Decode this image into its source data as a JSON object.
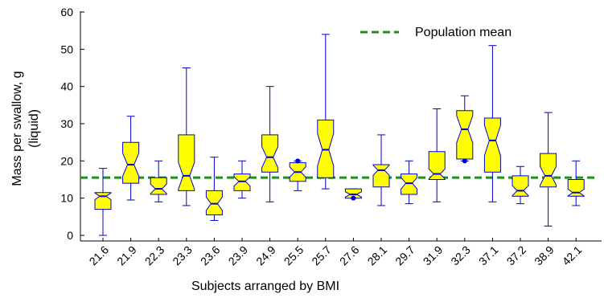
{
  "chart_data": {
    "type": "boxplot",
    "xlabel": "Subjects arranged by BMI",
    "ylabel_line1": "Mass per swallow, g",
    "ylabel_line2": "(liquid)",
    "ylim": [
      0,
      60
    ],
    "yticks": [
      "0",
      "10",
      "20",
      "30",
      "40",
      "50",
      "60"
    ],
    "categories": [
      "21.6",
      "21.9",
      "22.3",
      "23.3",
      "23.6",
      "23.9",
      "24.9",
      "25.5",
      "25.7",
      "27.6",
      "28.1",
      "29.7",
      "31.9",
      "32.3",
      "37.1",
      "37.2",
      "38.9",
      "42.1"
    ],
    "boxes": [
      {
        "min": 0,
        "q1": 7,
        "median": 10.5,
        "q3": 11.5,
        "max": 18,
        "outliers": []
      },
      {
        "min": 9.5,
        "q1": 14,
        "median": 19,
        "q3": 25,
        "max": 32,
        "outliers": []
      },
      {
        "min": 9,
        "q1": 11,
        "median": 12.5,
        "q3": 15.5,
        "max": 20,
        "outliers": []
      },
      {
        "min": 8,
        "q1": 12,
        "median": 16,
        "q3": 27,
        "max": 45,
        "outliers": []
      },
      {
        "min": 4,
        "q1": 5.5,
        "median": 8.5,
        "q3": 12,
        "max": 21,
        "outliers": []
      },
      {
        "min": 10,
        "q1": 12,
        "median": 14.5,
        "q3": 16.5,
        "max": 20,
        "outliers": []
      },
      {
        "min": 9,
        "q1": 17,
        "median": 21,
        "q3": 27,
        "max": 40,
        "outliers": []
      },
      {
        "min": 12,
        "q1": 14.5,
        "median": 17,
        "q3": 19.5,
        "max": 20,
        "outliers": [
          20
        ]
      },
      {
        "min": 12.5,
        "q1": 15.5,
        "median": 23,
        "q3": 31,
        "max": 54,
        "outliers": []
      },
      {
        "min": 10,
        "q1": 10,
        "median": 11,
        "q3": 12.5,
        "max": 12.5,
        "outliers": [
          10
        ]
      },
      {
        "min": 8,
        "q1": 13,
        "median": 17.5,
        "q3": 19,
        "max": 27,
        "outliers": []
      },
      {
        "min": 8.5,
        "q1": 11,
        "median": 14,
        "q3": 16.5,
        "max": 20,
        "outliers": []
      },
      {
        "min": 9,
        "q1": 15,
        "median": 16.5,
        "q3": 22.5,
        "max": 34,
        "outliers": []
      },
      {
        "min": 20,
        "q1": 20.5,
        "median": 28.5,
        "q3": 33.5,
        "max": 37.5,
        "outliers": [
          20
        ]
      },
      {
        "min": 9,
        "q1": 17,
        "median": 25.5,
        "q3": 31.5,
        "max": 51,
        "outliers": []
      },
      {
        "min": 8.5,
        "q1": 10.5,
        "median": 12,
        "q3": 16,
        "max": 18.5,
        "outliers": []
      },
      {
        "min": 2.5,
        "q1": 13,
        "median": 16,
        "q3": 22,
        "max": 33,
        "outliers": []
      },
      {
        "min": 8,
        "q1": 10.5,
        "median": 11.5,
        "q3": 15,
        "max": 20,
        "outliers": []
      }
    ],
    "reference_line": {
      "name": "Population mean",
      "value": 15.5,
      "color": "#228b22",
      "style": "dashed"
    },
    "legend_placement": "top-right",
    "grid": false,
    "colors": {
      "box_fill": "#ffff00",
      "box_edge": "#0000cc",
      "whisker": "#0000cc",
      "median": "#0000cc",
      "outlier": "#0000cc"
    }
  }
}
